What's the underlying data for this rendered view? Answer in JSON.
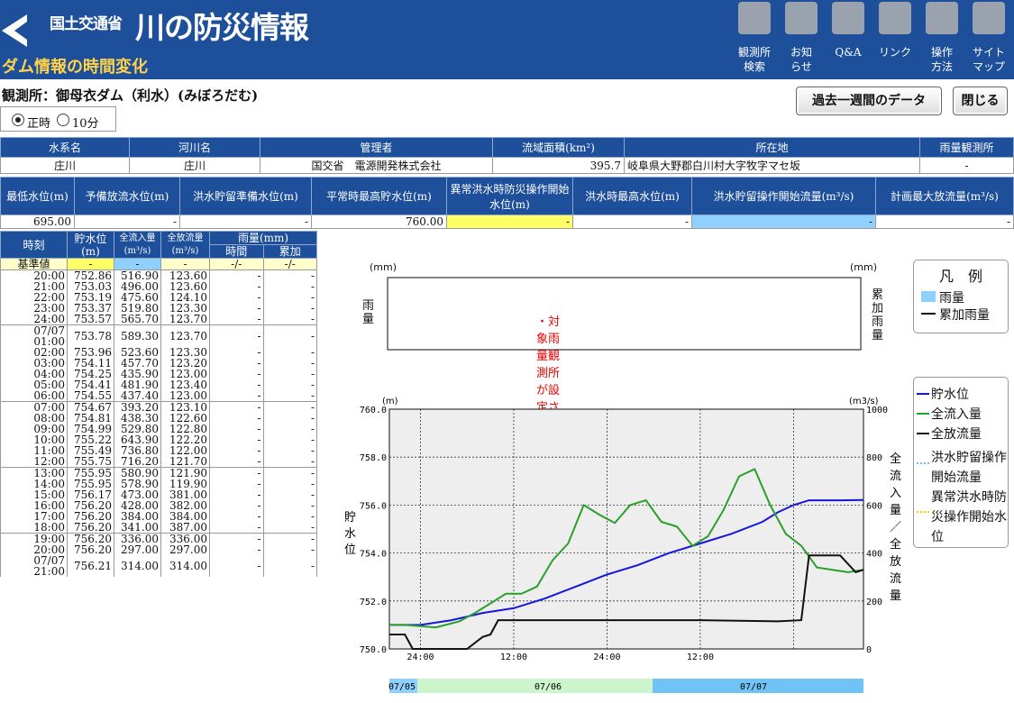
{
  "header": {
    "ministry": "国土交通省",
    "site_title": "川の防災情報",
    "page_subtitle": "ダム情報の時間変化",
    "nav": [
      {
        "label": "観測所\n検索",
        "icon": "search-icon"
      },
      {
        "label": "お知\nらせ",
        "icon": "info-icon"
      },
      {
        "label": "Q&A",
        "icon": "question-icon"
      },
      {
        "label": "リンク",
        "icon": "link-icon"
      },
      {
        "label": "操作\n方法",
        "icon": "mouse-icon"
      },
      {
        "label": "サイト\nマップ",
        "icon": "sitemap-icon"
      }
    ]
  },
  "station": "観測所：御母衣ダム（利水）(みぼろだむ)",
  "buttons": {
    "past_week": "過去一週間のデータ",
    "close": "閉じる"
  },
  "interval": {
    "hourly": "正時",
    "ten_min": "10分"
  },
  "info1": {
    "headers": [
      "水系名",
      "河川名",
      "管理者",
      "流域面積(km²)",
      "所在地",
      "雨量観測所"
    ],
    "values": [
      "庄川",
      "庄川",
      "国交省　電源開発株式会社",
      "395.7",
      "岐阜県大野郡白川村大字牧字マセ坂",
      "-"
    ]
  },
  "info2": {
    "headers": [
      "最低水位(m)",
      "予備放流水位(m)",
      "洪水貯留準備水位(m)",
      "平常時最高貯水位(m)",
      "異常洪水時防災操作開始水位(m)",
      "洪水時最高水位(m)",
      "洪水貯留操作開始流量(m³/s)",
      "計画最大放流量(m³/s)"
    ],
    "values": [
      "695.00",
      "-",
      "-",
      "760.00",
      "-",
      "-",
      "-",
      "-"
    ]
  },
  "hourly": {
    "headers": {
      "time": "時刻",
      "level": "貯水位(m)",
      "inflow": "全流入量(m³/s)",
      "outflow": "全放流量(m³/s)",
      "rain": "雨量(mm)",
      "rain_h": "時間",
      "rain_c": "累加"
    },
    "base": [
      "基準値",
      "-",
      "-",
      "-",
      "-/-",
      "-/-"
    ],
    "rows": [
      [
        "20:00",
        "752.86",
        "516.90",
        "123.60",
        "-",
        "-"
      ],
      [
        "21:00",
        "753.03",
        "496.00",
        "123.60",
        "-",
        "-"
      ],
      [
        "22:00",
        "753.19",
        "475.60",
        "124.10",
        "-",
        "-"
      ],
      [
        "23:00",
        "753.37",
        "519.80",
        "123.30",
        "-",
        "-"
      ],
      [
        "24:00",
        "753.57",
        "565.70",
        "123.70",
        "-",
        "-"
      ],
      [
        "07/07\n01:00",
        "753.78",
        "589.30",
        "123.70",
        "-",
        "-"
      ],
      [
        "02:00",
        "753.96",
        "523.60",
        "123.30",
        "-",
        "-"
      ],
      [
        "03:00",
        "754.11",
        "457.70",
        "123.20",
        "-",
        "-"
      ],
      [
        "04:00",
        "754.25",
        "435.90",
        "123.00",
        "-",
        "-"
      ],
      [
        "05:00",
        "754.41",
        "481.90",
        "123.40",
        "-",
        "-"
      ],
      [
        "06:00",
        "754.55",
        "437.40",
        "123.00",
        "-",
        "-"
      ],
      [
        "07:00",
        "754.67",
        "393.20",
        "123.10",
        "-",
        "-"
      ],
      [
        "08:00",
        "754.81",
        "438.30",
        "122.60",
        "-",
        "-"
      ],
      [
        "09:00",
        "754.99",
        "529.80",
        "122.80",
        "-",
        "-"
      ],
      [
        "10:00",
        "755.22",
        "643.90",
        "122.20",
        "-",
        "-"
      ],
      [
        "11:00",
        "755.49",
        "736.80",
        "122.00",
        "-",
        "-"
      ],
      [
        "12:00",
        "755.75",
        "716.20",
        "121.70",
        "-",
        "-"
      ],
      [
        "13:00",
        "755.95",
        "580.90",
        "121.90",
        "-",
        "-"
      ],
      [
        "14:00",
        "755.95",
        "578.90",
        "119.90",
        "-",
        "-"
      ],
      [
        "15:00",
        "756.17",
        "473.00",
        "381.00",
        "-",
        "-"
      ],
      [
        "16:00",
        "756.20",
        "428.00",
        "382.00",
        "-",
        "-"
      ],
      [
        "17:00",
        "756.20",
        "384.00",
        "384.00",
        "-",
        "-"
      ],
      [
        "18:00",
        "756.20",
        "341.00",
        "387.00",
        "-",
        "-"
      ],
      [
        "19:00",
        "756.20",
        "336.00",
        "336.00",
        "-",
        "-"
      ],
      [
        "20:00",
        "756.20",
        "297.00",
        "297.00",
        "-",
        "-"
      ],
      [
        "07/07\n21:00",
        "756.21",
        "314.00",
        "314.00",
        "-",
        "-"
      ]
    ]
  },
  "rain_chart": {
    "unit_left": "(mm)",
    "unit_right": "(mm)",
    "ylabel_left": "雨量",
    "ylabel_right": "累加雨量",
    "message": "・対象雨量観測所が設定されていません。"
  },
  "legend_rain": {
    "title": "凡　例",
    "items": [
      "雨量",
      "累加雨量"
    ]
  },
  "legend_main": {
    "items": [
      "貯水位",
      "全流入量",
      "全放流量",
      "洪水貯留操作開始流量",
      "異常洪水時防災操作開始水位"
    ]
  },
  "chart_data": {
    "type": "line",
    "ylabel_left": "貯水位",
    "ylabel_right": "全流入量／全放流量",
    "unit_left": "(m)",
    "unit_right": "(m3/s)",
    "ylim_left": [
      750,
      760
    ],
    "ylim_right": [
      0,
      1000
    ],
    "y_ticks_left": [
      "760.0",
      "758.0",
      "756.0",
      "754.0",
      "752.0",
      "750.0"
    ],
    "y_ticks_right": [
      "1000",
      "800",
      "600",
      "400",
      "200",
      "0"
    ],
    "x_ticks": [
      "24:00",
      "12:00",
      "24:00",
      "12:00"
    ],
    "date_bands": [
      "07/05",
      "07/06",
      "07/07"
    ],
    "series": [
      {
        "name": "貯水位",
        "color": "#1515e0",
        "values": [
          [
            0,
            751
          ],
          [
            4,
            751
          ],
          [
            8,
            751.2
          ],
          [
            12,
            751.5
          ],
          [
            16,
            751.7
          ],
          [
            20,
            752.1
          ],
          [
            24,
            752.6
          ],
          [
            28,
            753.1
          ],
          [
            32,
            753.5
          ],
          [
            36,
            754.0
          ],
          [
            40,
            754.4
          ],
          [
            44,
            754.8
          ],
          [
            48,
            755.3
          ],
          [
            50,
            755.7
          ],
          [
            52,
            756.0
          ],
          [
            54,
            756.2
          ],
          [
            58,
            756.2
          ],
          [
            61,
            756.21
          ]
        ]
      },
      {
        "name": "全流入量",
        "color": "#2aa02a",
        "values": [
          [
            0,
            100
          ],
          [
            2,
            100
          ],
          [
            4,
            95
          ],
          [
            6,
            90
          ],
          [
            9,
            115
          ],
          [
            11,
            150
          ],
          [
            13,
            190
          ],
          [
            15,
            230
          ],
          [
            17,
            230
          ],
          [
            19,
            260
          ],
          [
            21,
            370
          ],
          [
            23,
            440
          ],
          [
            25,
            600
          ],
          [
            27,
            560
          ],
          [
            29,
            525
          ],
          [
            31,
            600
          ],
          [
            33,
            620
          ],
          [
            35,
            530
          ],
          [
            37,
            510
          ],
          [
            39,
            430
          ],
          [
            41,
            470
          ],
          [
            43,
            580
          ],
          [
            45,
            720
          ],
          [
            47,
            750
          ],
          [
            49,
            600
          ],
          [
            51,
            480
          ],
          [
            53,
            430
          ],
          [
            55,
            340
          ],
          [
            57,
            330
          ],
          [
            59,
            320
          ],
          [
            61,
            330
          ]
        ]
      },
      {
        "name": "全放流量",
        "color": "#111111",
        "values": [
          [
            0,
            60
          ],
          [
            2,
            60
          ],
          [
            3,
            0
          ],
          [
            7,
            0
          ],
          [
            10,
            0
          ],
          [
            12,
            50
          ],
          [
            13,
            60
          ],
          [
            14,
            120
          ],
          [
            20,
            120
          ],
          [
            30,
            120
          ],
          [
            40,
            120
          ],
          [
            50,
            115
          ],
          [
            53,
            120
          ],
          [
            54,
            390
          ],
          [
            58,
            390
          ],
          [
            60,
            320
          ],
          [
            61,
            330
          ]
        ]
      }
    ]
  }
}
